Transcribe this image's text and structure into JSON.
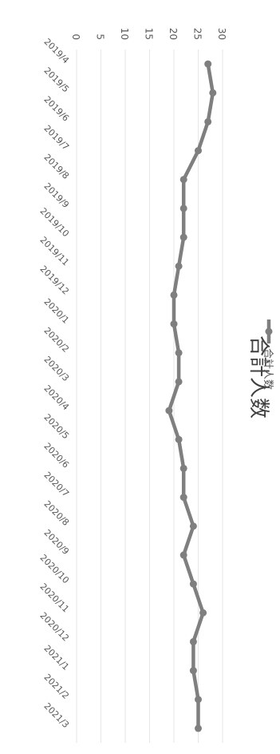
{
  "chart_data": {
    "type": "line",
    "title": "合計人数",
    "xlabel": "",
    "ylabel": "",
    "orientation": "rotated 90° clockwise",
    "categories": [
      "2019/4",
      "2019/5",
      "2019/6",
      "2019/7",
      "2019/8",
      "2019/9",
      "2019/10",
      "2019/11",
      "2019/12",
      "2020/1",
      "2020/2",
      "2020/3",
      "2020/4",
      "2020/5",
      "2020/6",
      "2020/7",
      "2020/8",
      "2020/9",
      "2020/10",
      "2020/11",
      "2020/12",
      "2021/1",
      "2021/2",
      "2021/3"
    ],
    "series": [
      {
        "name": "合計人数",
        "values": [
          27,
          28,
          27,
          25,
          22,
          22,
          22,
          21,
          20,
          20,
          21,
          21,
          19,
          21,
          22,
          22,
          24,
          22,
          24,
          26,
          24,
          24,
          25,
          25
        ]
      }
    ],
    "ylim": [
      0,
      30
    ],
    "yticks": [
      0,
      5,
      10,
      15,
      20,
      25,
      30
    ],
    "grid": true,
    "legend": "bottom",
    "colors": {
      "line": "#7f7f7f",
      "grid": "#e6e6e6",
      "text": "#595959"
    }
  }
}
